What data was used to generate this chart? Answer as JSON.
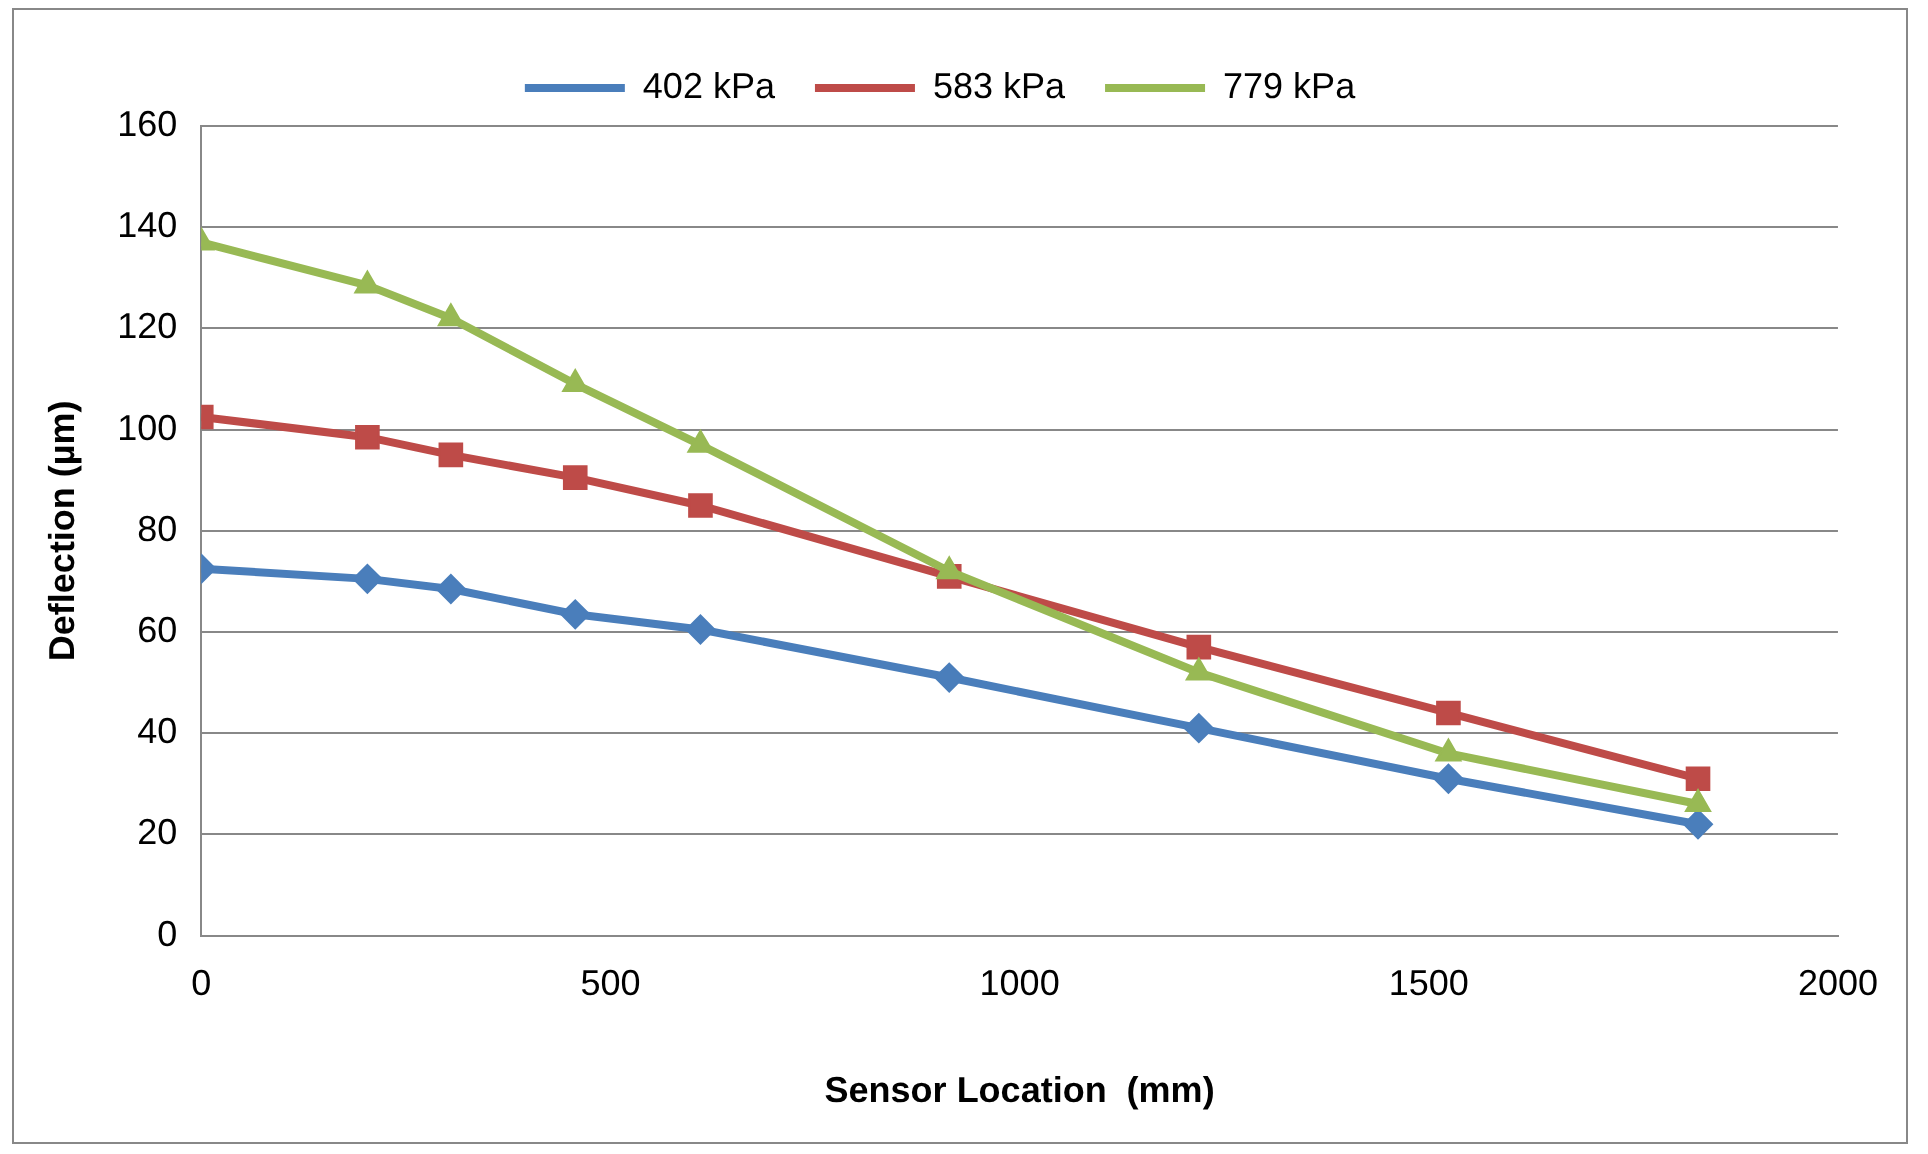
{
  "chart_data": {
    "type": "line",
    "xlabel": "Sensor Location  (mm)",
    "ylabel": "Deflection (µm)",
    "x": [
      0,
      203,
      305,
      457,
      610,
      914,
      1219,
      1524,
      1829
    ],
    "xlim": [
      0,
      2000
    ],
    "xticks": [
      0,
      500,
      1000,
      1500,
      2000
    ],
    "ylim": [
      0,
      160
    ],
    "yticks": [
      0,
      20,
      40,
      60,
      80,
      100,
      120,
      140,
      160
    ],
    "grid": "y",
    "legend": "top",
    "series": [
      {
        "name": "402 kPa",
        "color": "#4a7ebb",
        "marker": "diamond",
        "values": [
          72.5,
          70.5,
          68.5,
          63.5,
          60.5,
          51,
          41,
          31,
          22
        ]
      },
      {
        "name": "583 kPa",
        "color": "#be4b48",
        "marker": "square",
        "values": [
          102.5,
          98.5,
          95,
          90.5,
          85,
          71,
          57,
          44,
          31
        ]
      },
      {
        "name": "779 kPa",
        "color": "#98b954",
        "marker": "triangle",
        "values": [
          137,
          128.5,
          122,
          109,
          97,
          72,
          52,
          36,
          26
        ]
      }
    ]
  }
}
